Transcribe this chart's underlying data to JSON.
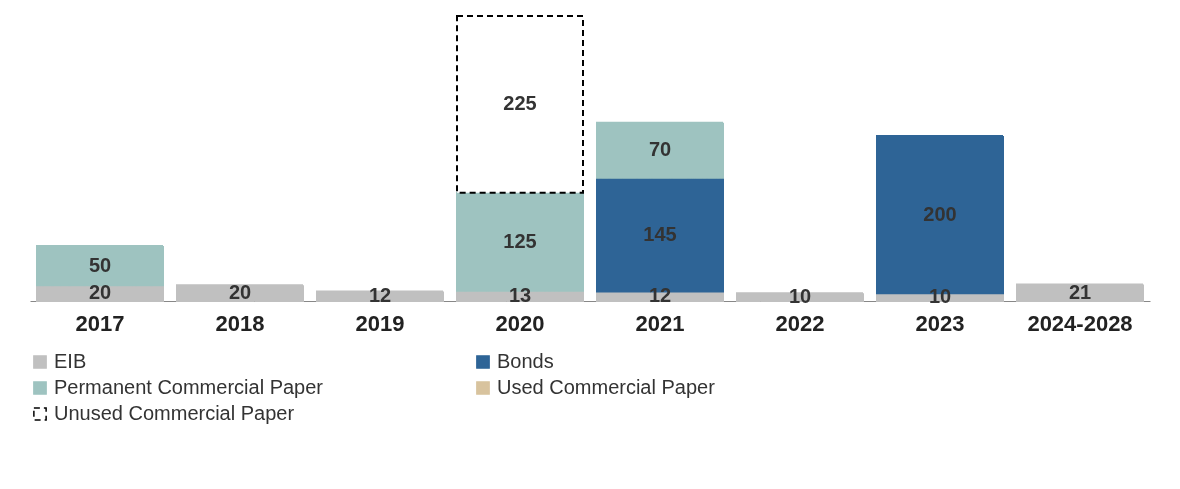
{
  "chart_data": {
    "type": "bar",
    "stacked": true,
    "data_labels": true,
    "legend": "bottom",
    "grid": false,
    "categories": [
      "2017",
      "2018",
      "2019",
      "2020",
      "2021",
      "2022",
      "2023",
      "2024-2028"
    ],
    "series": [
      {
        "name": "EIB",
        "color": "#c0c0c0",
        "values": [
          20,
          20,
          12,
          13,
          12,
          10,
          10,
          21
        ]
      },
      {
        "name": "Bonds",
        "color": "#2e6496",
        "values": [
          null,
          null,
          null,
          null,
          145,
          null,
          200,
          null
        ]
      },
      {
        "name": "Permanent Commercial Paper",
        "color": "#9ec3c0",
        "values": [
          50,
          null,
          null,
          125,
          70,
          null,
          null,
          null
        ]
      },
      {
        "name": "Used Commercial Paper",
        "color": "#d8c39e",
        "values": [
          null,
          null,
          null,
          null,
          null,
          null,
          null,
          null
        ]
      },
      {
        "name": "Unused Commercial Paper",
        "color": "#ffffff",
        "line_style": "dashed",
        "values": [
          null,
          null,
          null,
          225,
          null,
          null,
          null,
          null
        ]
      }
    ]
  }
}
